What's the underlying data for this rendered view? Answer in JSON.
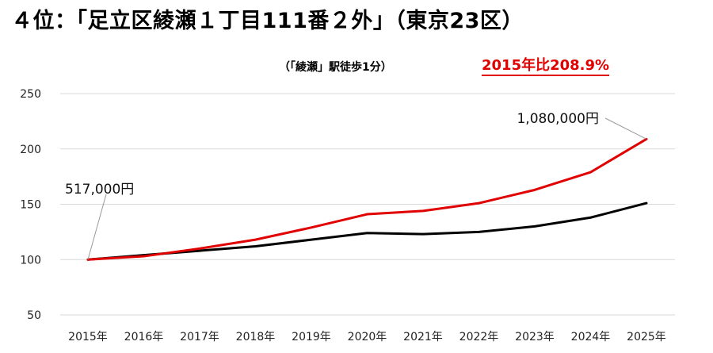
{
  "title": "４位：「足立区綾瀬１丁目111番２外」（東京23区）",
  "subtitle": "（「綾瀬」駅徒歩1分）",
  "highlight": "2015年比208.9%",
  "colors": {
    "primary_series": "#e00000",
    "secondary_series": "#000000",
    "grid": "#d9d9d9"
  },
  "chart_data": {
    "type": "line",
    "categories": [
      "2015年",
      "2016年",
      "2017年",
      "2018年",
      "2019年",
      "2020年",
      "2021年",
      "2022年",
      "2023年",
      "2024年",
      "2025年"
    ],
    "series": [
      {
        "values": [
          100,
          103,
          110,
          118,
          129,
          141,
          144,
          151,
          163,
          179,
          208.9
        ]
      },
      {
        "values": [
          100,
          104,
          108,
          112,
          118,
          124,
          123,
          125,
          130,
          138,
          151
        ]
      }
    ],
    "yticks": [
      "50",
      "100",
      "150",
      "200",
      "250"
    ],
    "ylim": [
      50,
      250
    ],
    "grid": true,
    "annotations": [
      {
        "text": "517,000円",
        "category": "2015年",
        "series": 0
      },
      {
        "text": "1,080,000円",
        "category": "2025年",
        "series": 0
      }
    ]
  }
}
